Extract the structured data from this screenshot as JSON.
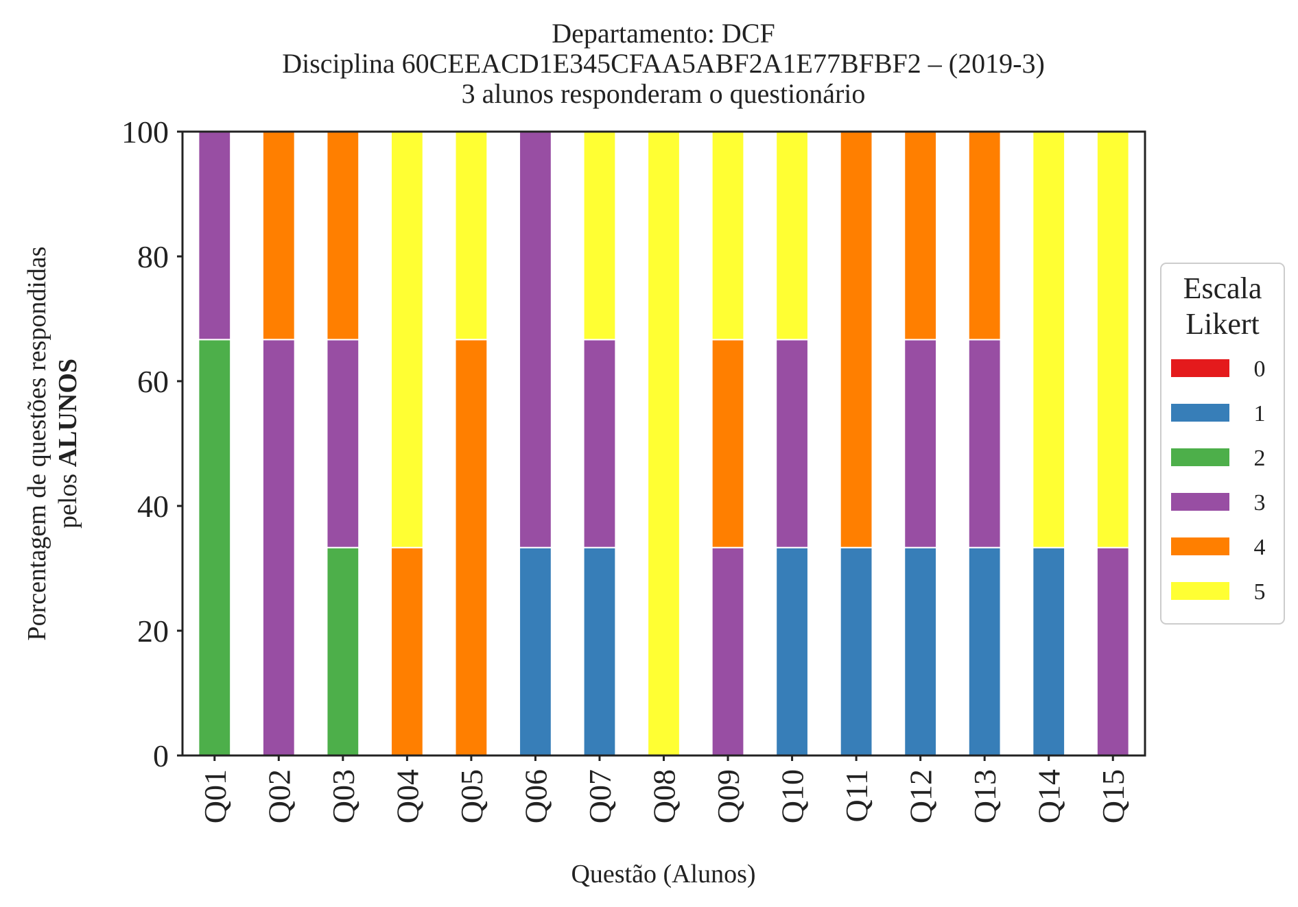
{
  "chart_data": {
    "type": "bar",
    "stacked": true,
    "title_lines": [
      "Departamento: DCF",
      "Disciplina 60CEEACD1E345CFAA5ABF2A1E77BFBF2 – (2019-3)",
      "3 alunos responderam o questionário"
    ],
    "xlabel": "Questão (Alunos)",
    "ylabel_line1": "Porcentagem de questões respondidas",
    "ylabel_line2_prefix": "pelos ",
    "ylabel_line2_bold": "ALUNOS",
    "ylim": [
      0,
      100
    ],
    "yticks": [
      "0",
      "20",
      "40",
      "60",
      "80",
      "100"
    ],
    "categories": [
      "Q01",
      "Q02",
      "Q03",
      "Q04",
      "Q05",
      "Q06",
      "Q07",
      "Q08",
      "Q09",
      "Q10",
      "Q11",
      "Q12",
      "Q13",
      "Q14",
      "Q15"
    ],
    "legend": {
      "title_lines": [
        "Escala",
        "Likert"
      ],
      "placement": "right-center"
    },
    "series": [
      {
        "name": "0",
        "color": "#e41a1c",
        "values": [
          0,
          0,
          0,
          0,
          0,
          0,
          0,
          0,
          0,
          0,
          0,
          0,
          0,
          0,
          0
        ]
      },
      {
        "name": "1",
        "color": "#377eb8",
        "values": [
          0,
          0,
          0,
          0,
          0,
          33.33,
          33.33,
          0,
          0,
          33.33,
          33.33,
          33.33,
          33.33,
          33.33,
          0
        ]
      },
      {
        "name": "2",
        "color": "#4daf4a",
        "values": [
          66.67,
          0,
          33.33,
          0,
          0,
          0,
          0,
          0,
          0,
          0,
          0,
          0,
          0,
          0,
          0
        ]
      },
      {
        "name": "3",
        "color": "#984ea3",
        "values": [
          33.33,
          66.67,
          33.33,
          0,
          0,
          66.67,
          33.33,
          0,
          33.33,
          33.33,
          0,
          33.33,
          33.33,
          0,
          33.33
        ]
      },
      {
        "name": "4",
        "color": "#ff7f00",
        "values": [
          0,
          33.33,
          33.33,
          33.33,
          66.67,
          0,
          0,
          0,
          33.33,
          0,
          66.67,
          33.33,
          33.33,
          0,
          0
        ]
      },
      {
        "name": "5",
        "color": "#ffff33",
        "values": [
          0,
          0,
          0,
          66.67,
          33.33,
          0,
          33.33,
          100,
          33.33,
          33.33,
          0,
          0,
          0,
          66.67,
          66.67
        ]
      }
    ]
  }
}
